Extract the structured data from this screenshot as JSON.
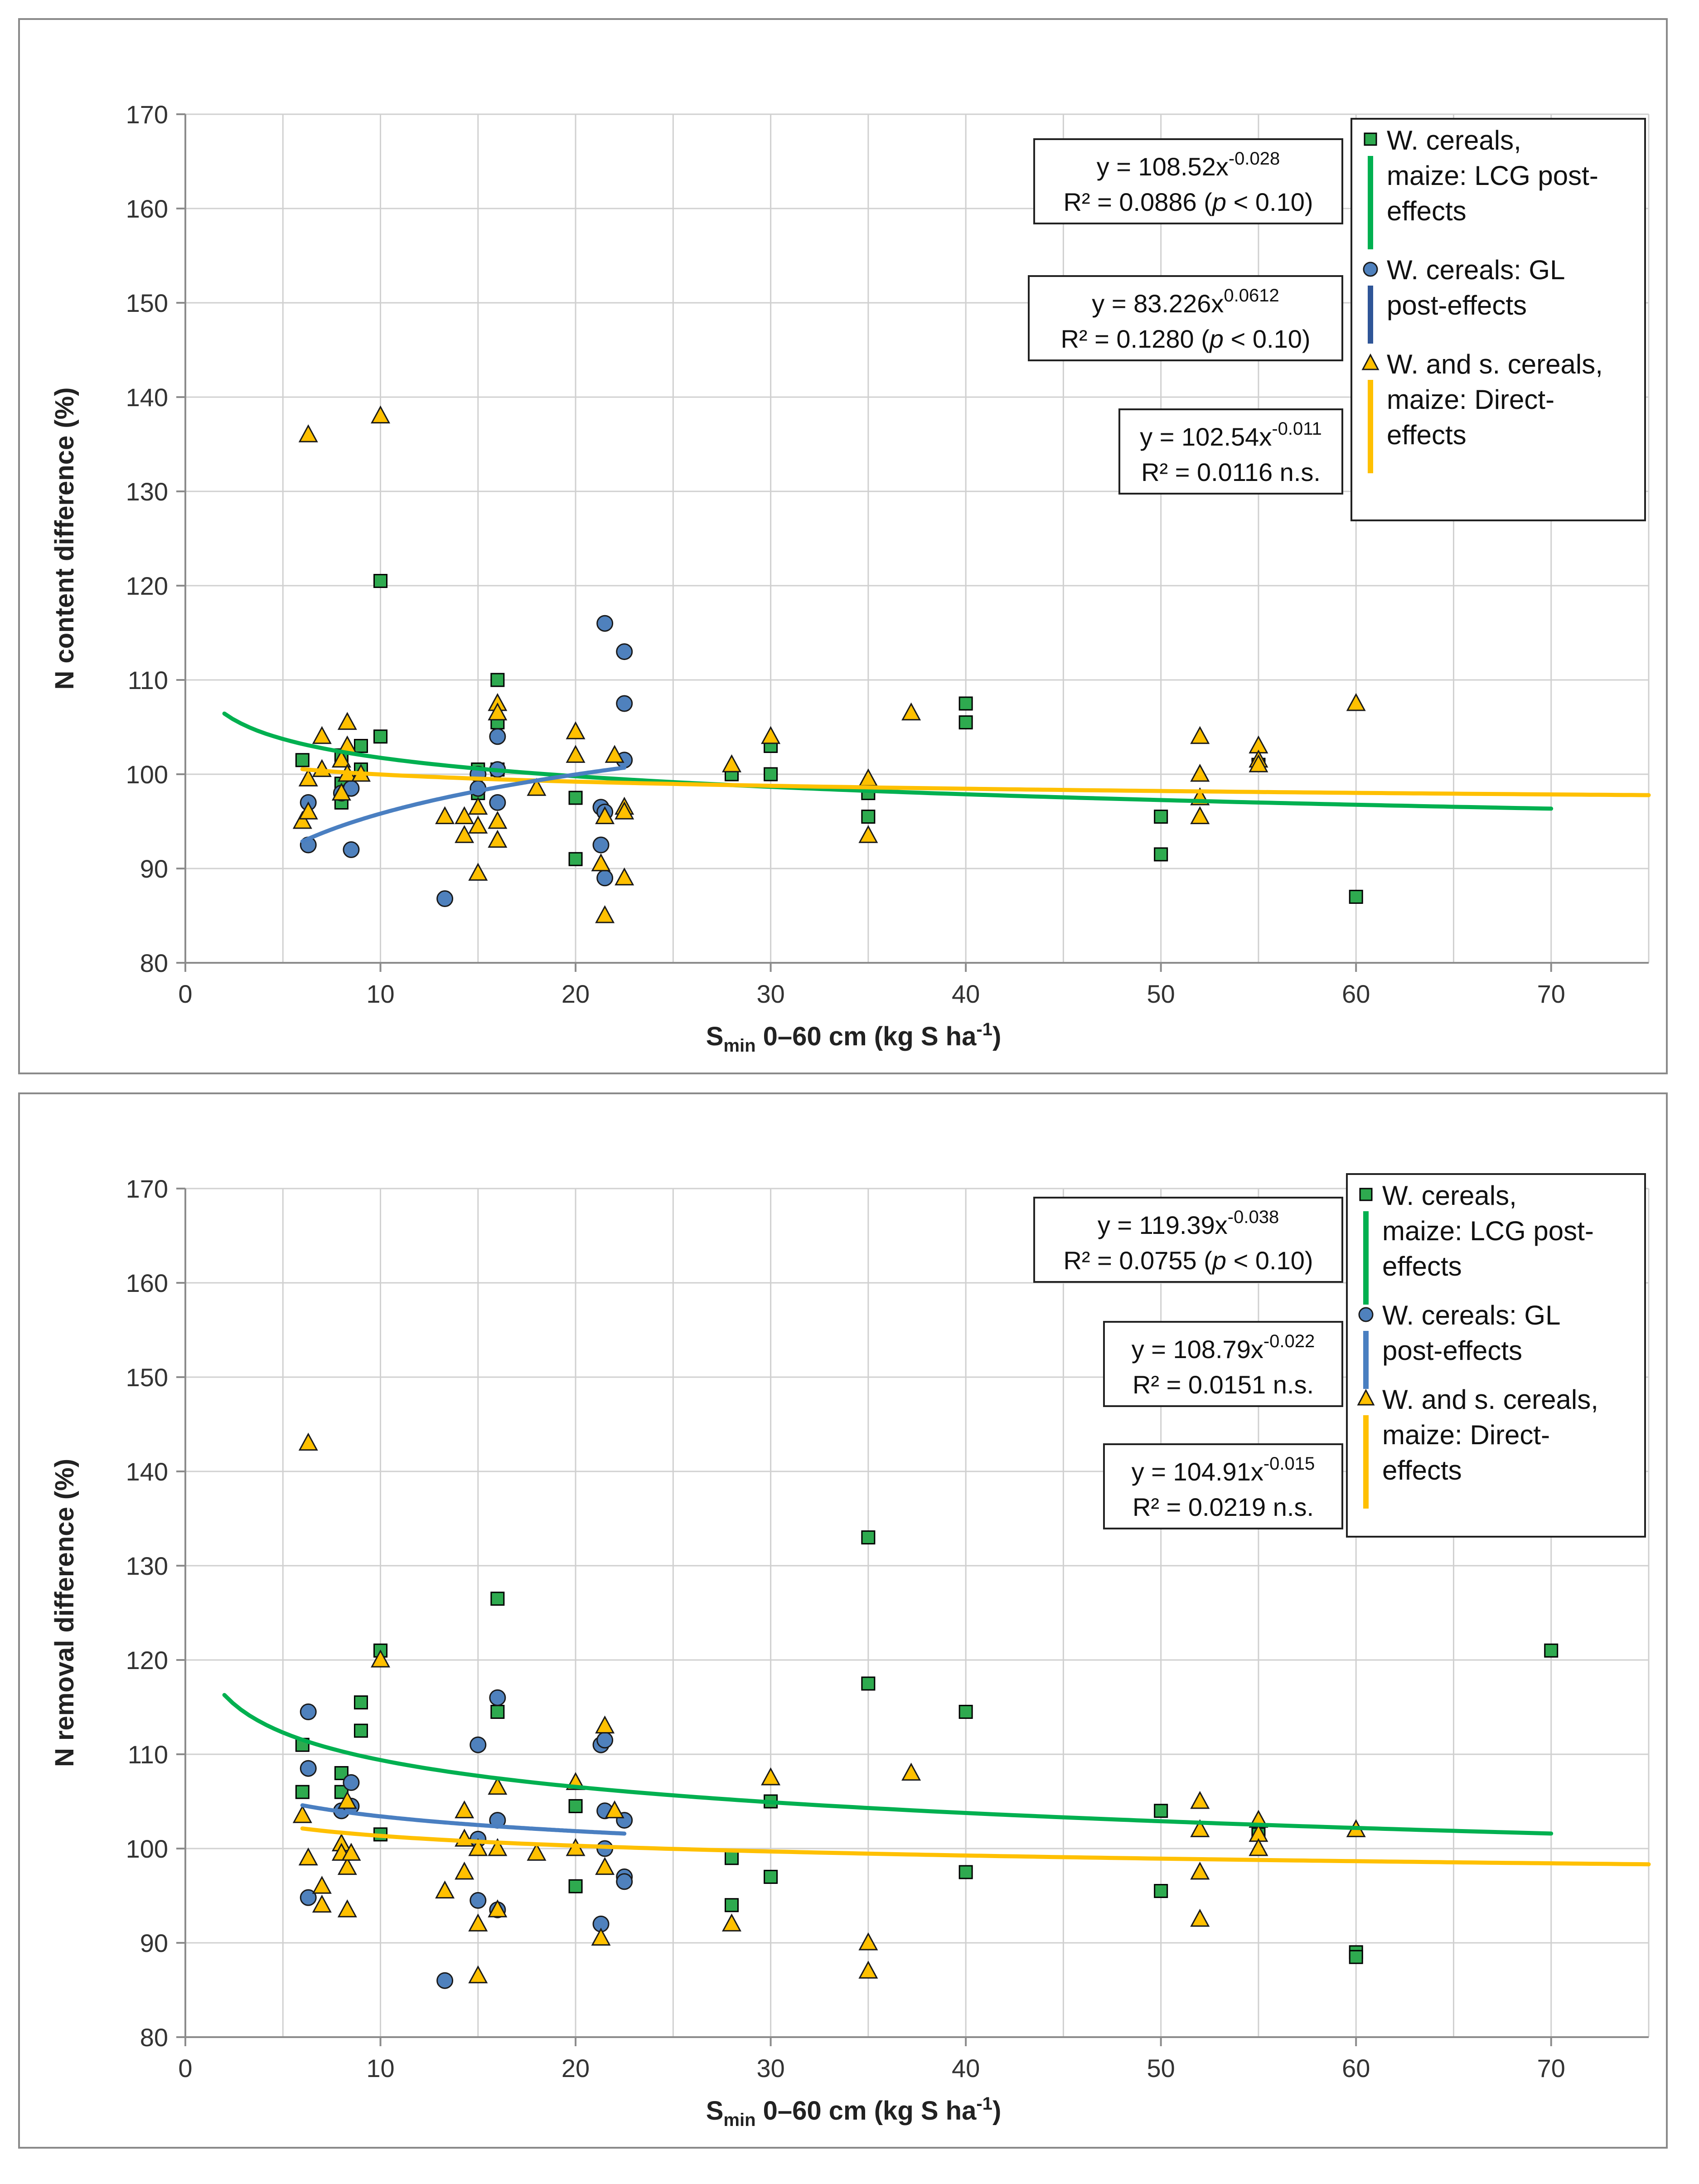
{
  "chart_data": [
    {
      "type": "scatter",
      "title": "",
      "xlabel_main": "S",
      "xlabel_sub": "min",
      "xlabel_rest": " 0–60 cm (kg S ha",
      "xlabel_sup": "-1",
      "xlabel_end": ")",
      "ylabel": "N content difference (%)",
      "xlim": [
        0,
        75
      ],
      "ylim": [
        80,
        170
      ],
      "xticks": [
        0,
        10,
        20,
        30,
        40,
        50,
        60,
        70
      ],
      "yticks": [
        80,
        90,
        100,
        110,
        120,
        130,
        140,
        150,
        160,
        170
      ],
      "grid": true,
      "series": [
        {
          "name_lines": [
            "W. cereals,",
            "maize: LCG post-",
            "effects"
          ],
          "marker": "square",
          "color": "#00b050",
          "fill": "#2eaa4f",
          "points": [
            [
              6,
              101.5
            ],
            [
              8,
              97
            ],
            [
              8,
              99
            ],
            [
              8,
              102
            ],
            [
              9,
              103
            ],
            [
              9,
              100.5
            ],
            [
              10,
              104
            ],
            [
              10,
              120.5
            ],
            [
              15,
              100.5
            ],
            [
              15,
              98
            ],
            [
              16,
              110
            ],
            [
              16,
              105.5
            ],
            [
              16,
              100.5
            ],
            [
              20,
              97.5
            ],
            [
              20,
              91
            ],
            [
              28,
              100
            ],
            [
              30,
              103
            ],
            [
              30,
              100
            ],
            [
              35,
              98
            ],
            [
              35,
              95.5
            ],
            [
              40,
              107.5
            ],
            [
              40,
              105.5
            ],
            [
              50,
              95.5
            ],
            [
              50,
              91.5
            ],
            [
              55,
              101
            ],
            [
              60,
              87
            ]
          ],
          "fit": {
            "a": 108.52,
            "b": -0.028,
            "x_range": [
              2,
              70
            ]
          },
          "eq_main": "y = 108.52x",
          "eq_exp": "-0.028",
          "r2_pre": "R² = 0.0886 (",
          "r2_p": "p",
          "r2_post": " < 0.10)"
        },
        {
          "name_lines": [
            "W. cereals: GL",
            "post-effects"
          ],
          "marker": "circle",
          "color": "#3465a4",
          "fill": "#4f81bd",
          "points": [
            [
              6.3,
              97
            ],
            [
              6.3,
              92.5
            ],
            [
              8,
              98
            ],
            [
              8.5,
              98.5
            ],
            [
              8.5,
              92
            ],
            [
              13.3,
              86.8
            ],
            [
              15,
              100
            ],
            [
              15,
              98.5
            ],
            [
              16,
              104
            ],
            [
              16,
              100.5
            ],
            [
              16,
              97
            ],
            [
              21.3,
              96.5
            ],
            [
              21.3,
              92.5
            ],
            [
              21.5,
              116
            ],
            [
              21.5,
              96
            ],
            [
              21.5,
              89
            ],
            [
              22.5,
              113
            ],
            [
              22.5,
              107.5
            ],
            [
              22.5,
              101.5
            ]
          ],
          "fit": {
            "a": 83.226,
            "b": 0.0612,
            "x_range": [
              6,
              22.5
            ]
          },
          "eq_main": "y = 83.226x",
          "eq_exp": "0.0612",
          "r2_pre": "R² = 0.1280 (",
          "r2_p": "p",
          "r2_post": " < 0.10)"
        },
        {
          "name_lines": [
            "W. and s. cereals,",
            "maize: Direct-",
            "effects"
          ],
          "marker": "triangle",
          "color": "#ffc000",
          "fill": "#ffc000",
          "points": [
            [
              6,
              95
            ],
            [
              6.3,
              136
            ],
            [
              6.3,
              99.5
            ],
            [
              6.3,
              96
            ],
            [
              7,
              104
            ],
            [
              7,
              100.5
            ],
            [
              8,
              101.5
            ],
            [
              8,
              98
            ],
            [
              8.3,
              105.5
            ],
            [
              8.3,
              103
            ],
            [
              8.3,
              100
            ],
            [
              9,
              100
            ],
            [
              10,
              138
            ],
            [
              13.3,
              95.5
            ],
            [
              14.3,
              95.5
            ],
            [
              14.3,
              93.5
            ],
            [
              15,
              96.5
            ],
            [
              15,
              94.5
            ],
            [
              15,
              89.5
            ],
            [
              16,
              107.5
            ],
            [
              16,
              106.5
            ],
            [
              16,
              95
            ],
            [
              16,
              93
            ],
            [
              18,
              98.5
            ],
            [
              20,
              104.5
            ],
            [
              20,
              102
            ],
            [
              21.3,
              90.5
            ],
            [
              21.5,
              95.5
            ],
            [
              21.5,
              85
            ],
            [
              22,
              102
            ],
            [
              22.5,
              96.5
            ],
            [
              22.5,
              96
            ],
            [
              22.5,
              89
            ],
            [
              28,
              101
            ],
            [
              30,
              104
            ],
            [
              35,
              99.5
            ],
            [
              35,
              93.5
            ],
            [
              37.2,
              106.5
            ],
            [
              52,
              104
            ],
            [
              52,
              100
            ],
            [
              52,
              97.5
            ],
            [
              52,
              95.5
            ],
            [
              55,
              103
            ],
            [
              55,
              101.5
            ],
            [
              55,
              101
            ],
            [
              60,
              107.5
            ]
          ],
          "fit": {
            "a": 102.54,
            "b": -0.011,
            "x_range": [
              6,
              75
            ]
          },
          "eq_main": "y = 102.54x",
          "eq_exp": "-0.011",
          "r2_pre": "R² = 0.0116 n.s.",
          "r2_p": "",
          "r2_post": ""
        }
      ]
    },
    {
      "type": "scatter",
      "title": "",
      "xlabel_main": "S",
      "xlabel_sub": "min",
      "xlabel_rest": " 0–60 cm (kg S ha",
      "xlabel_sup": "-1",
      "xlabel_end": ")",
      "ylabel": "N removal difference (%)",
      "xlim": [
        0,
        75
      ],
      "ylim": [
        80,
        170
      ],
      "xticks": [
        0,
        10,
        20,
        30,
        40,
        50,
        60,
        70
      ],
      "yticks": [
        80,
        90,
        100,
        110,
        120,
        130,
        140,
        150,
        160,
        170
      ],
      "grid": true,
      "series": [
        {
          "name_lines": [
            "W. cereals,",
            "maize: LCG post-",
            "effects"
          ],
          "marker": "square",
          "color": "#00b050",
          "fill": "#2eaa4f",
          "points": [
            [
              6,
              111
            ],
            [
              6,
              106
            ],
            [
              8,
              108
            ],
            [
              8,
              106
            ],
            [
              9,
              115.5
            ],
            [
              9,
              112.5
            ],
            [
              10,
              121
            ],
            [
              10,
              101.5
            ],
            [
              16,
              126.5
            ],
            [
              16,
              114.5
            ],
            [
              20,
              104.5
            ],
            [
              20,
              96
            ],
            [
              28,
              99
            ],
            [
              28,
              94
            ],
            [
              30,
              105
            ],
            [
              30,
              97
            ],
            [
              35,
              133
            ],
            [
              35,
              117.5
            ],
            [
              40,
              114.5
            ],
            [
              40,
              97.5
            ],
            [
              50,
              104
            ],
            [
              50,
              95.5
            ],
            [
              55,
              101.5
            ],
            [
              60,
              89
            ],
            [
              60,
              88.5
            ],
            [
              70,
              121
            ]
          ],
          "fit": {
            "a": 119.39,
            "b": -0.038,
            "x_range": [
              2,
              70
            ]
          },
          "eq_main": "y = 119.39x",
          "eq_exp": "-0.038",
          "r2_pre": "R² = 0.0755 (",
          "r2_p": "p",
          "r2_post": " < 0.10)"
        },
        {
          "name_lines": [
            "W. cereals: GL",
            "post-effects"
          ],
          "marker": "circle",
          "color": "#3465a4",
          "fill": "#4f81bd",
          "points": [
            [
              6.3,
              114.5
            ],
            [
              6.3,
              108.5
            ],
            [
              6.3,
              94.8
            ],
            [
              8,
              104
            ],
            [
              8.5,
              107
            ],
            [
              8.5,
              104.5
            ],
            [
              13.3,
              86
            ],
            [
              15,
              111
            ],
            [
              15,
              101
            ],
            [
              15,
              94.5
            ],
            [
              16,
              116
            ],
            [
              16,
              103
            ],
            [
              16,
              93.5
            ],
            [
              21.3,
              111
            ],
            [
              21.3,
              92
            ],
            [
              21.5,
              111.5
            ],
            [
              21.5,
              104
            ],
            [
              21.5,
              100
            ],
            [
              22.5,
              103
            ],
            [
              22.5,
              97
            ],
            [
              22.5,
              96.5
            ]
          ],
          "fit": {
            "a": 108.79,
            "b": -0.022,
            "x_range": [
              6,
              22.5
            ]
          },
          "eq_main": "y = 108.79x",
          "eq_exp": "-0.022",
          "r2_pre": "R² = 0.0151 n.s.",
          "r2_p": "",
          "r2_post": ""
        },
        {
          "name_lines": [
            "W. and s. cereals,",
            "maize: Direct-",
            "effects"
          ],
          "marker": "triangle",
          "color": "#ffc000",
          "fill": "#ffc000",
          "points": [
            [
              6,
              103.5
            ],
            [
              6.3,
              143
            ],
            [
              6.3,
              99
            ],
            [
              7,
              96
            ],
            [
              7,
              94
            ],
            [
              8,
              100.5
            ],
            [
              8,
              99.5
            ],
            [
              8.3,
              105
            ],
            [
              8.3,
              98
            ],
            [
              8.3,
              93.5
            ],
            [
              8.5,
              99.5
            ],
            [
              10,
              120
            ],
            [
              13.3,
              95.5
            ],
            [
              14.3,
              104
            ],
            [
              14.3,
              101
            ],
            [
              14.3,
              97.5
            ],
            [
              15,
              100
            ],
            [
              15,
              92
            ],
            [
              15,
              86.5
            ],
            [
              16,
              106.5
            ],
            [
              16,
              100
            ],
            [
              16,
              93.5
            ],
            [
              18,
              99.5
            ],
            [
              20,
              107
            ],
            [
              20,
              100
            ],
            [
              21.3,
              90.5
            ],
            [
              21.5,
              113
            ],
            [
              21.5,
              98
            ],
            [
              22,
              104
            ],
            [
              28,
              92
            ],
            [
              30,
              107.5
            ],
            [
              35,
              90
            ],
            [
              35,
              87
            ],
            [
              37.2,
              108
            ],
            [
              52,
              105
            ],
            [
              52,
              102
            ],
            [
              52,
              97.5
            ],
            [
              52,
              92.5
            ],
            [
              55,
              103
            ],
            [
              55,
              101.5
            ],
            [
              55,
              100
            ],
            [
              60,
              102
            ]
          ],
          "fit": {
            "a": 104.91,
            "b": -0.015,
            "x_range": [
              6,
              75
            ]
          },
          "eq_main": "y = 104.91x",
          "eq_exp": "-0.015",
          "r2_pre": "R² = 0.0219 n.s.",
          "r2_p": "",
          "r2_post": ""
        }
      ]
    }
  ]
}
